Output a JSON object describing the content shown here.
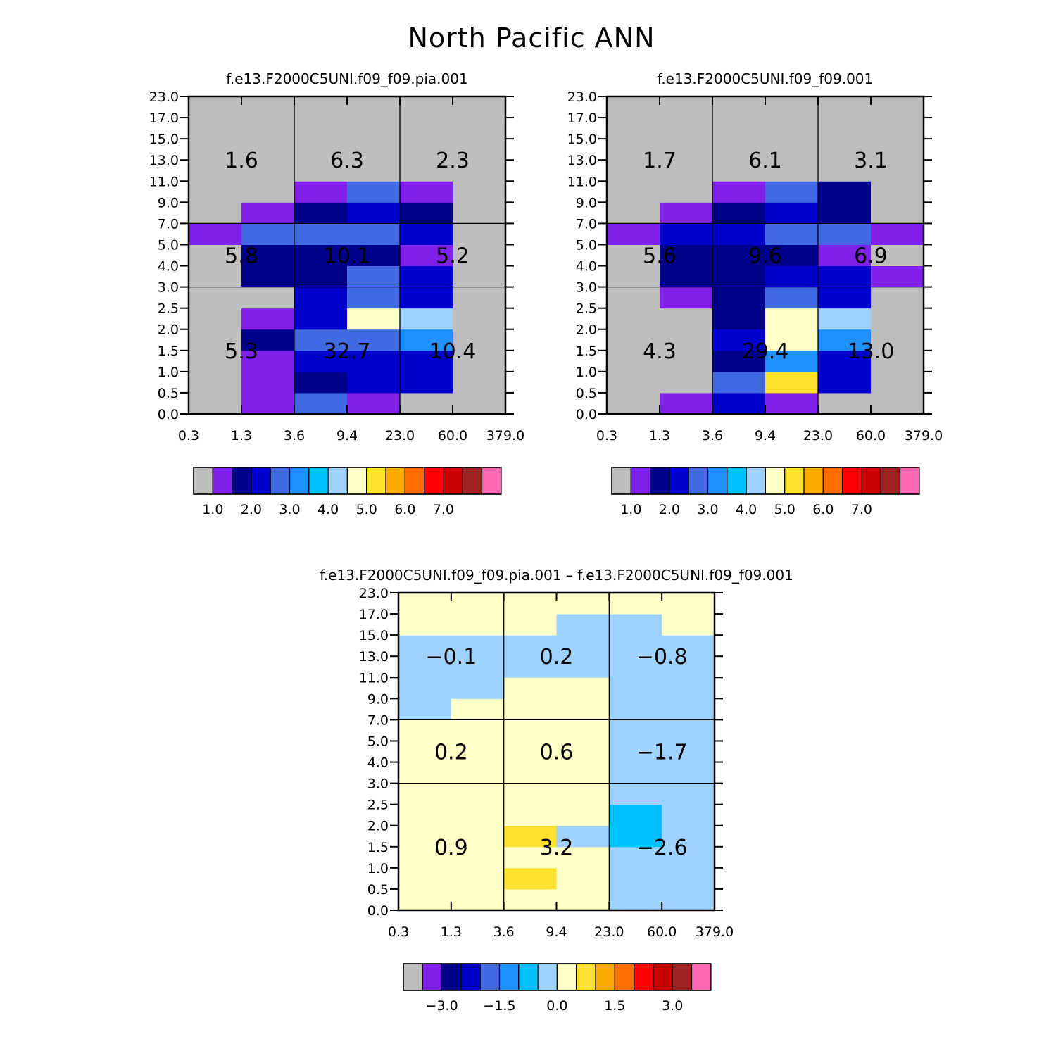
{
  "title": "North Pacific ANN",
  "colors": {
    "missing": "#bebebe",
    "palette": [
      "#bebebe",
      "#8020e8",
      "#00008b",
      "#0000cd",
      "#4169e1",
      "#1e90ff",
      "#00bfff",
      "#a0d2ff",
      "#ffffc8",
      "#ffe132",
      "#ffaa00",
      "#ff6e00",
      "#ff0000",
      "#c80000",
      "#a02323",
      "#ff69b4"
    ]
  },
  "chart_data": [
    {
      "id": "panel-pia",
      "type": "heatmap",
      "title": "f.e13.F2000C5UNI.f09_f09.pia.001",
      "x_ticks": [
        "0.3",
        "1.3",
        "3.6",
        "9.4",
        "23.0",
        "60.0",
        "379.0"
      ],
      "y_ticks": [
        "0.0",
        "0.5",
        "1.0",
        "1.5",
        "2.0",
        "2.5",
        "3.0",
        "4.0",
        "5.0",
        "7.0",
        "9.0",
        "11.0",
        "13.0",
        "15.0",
        "17.0",
        "23.0"
      ],
      "group_values": [
        [
          "1.6",
          "6.3",
          "2.3"
        ],
        [
          "5.8",
          "10.1",
          "5.2"
        ],
        [
          "5.3",
          "32.7",
          "10.4"
        ]
      ],
      "grid_color_index": [
        [
          0,
          1,
          4,
          1,
          0,
          0
        ],
        [
          0,
          1,
          2,
          3,
          3,
          0
        ],
        [
          0,
          1,
          3,
          3,
          3,
          0
        ],
        [
          0,
          2,
          4,
          4,
          5,
          0
        ],
        [
          0,
          1,
          3,
          8,
          7,
          0
        ],
        [
          0,
          0,
          3,
          4,
          3,
          0
        ],
        [
          0,
          2,
          2,
          4,
          3,
          0
        ],
        [
          0,
          2,
          2,
          2,
          1,
          0
        ],
        [
          1,
          4,
          4,
          4,
          3,
          0
        ],
        [
          0,
          1,
          2,
          3,
          2,
          0
        ],
        [
          0,
          0,
          1,
          4,
          1,
          0
        ],
        [
          0,
          0,
          0,
          0,
          0,
          0
        ],
        [
          0,
          0,
          0,
          0,
          0,
          0
        ],
        [
          0,
          0,
          0,
          0,
          0,
          0
        ],
        [
          0,
          0,
          0,
          0,
          0,
          0
        ]
      ],
      "colorbar": {
        "labels": [
          "1.0",
          "2.0",
          "3.0",
          "4.0",
          "5.0",
          "6.0",
          "7.0"
        ],
        "label_box_index": [
          1,
          3,
          5,
          7,
          9,
          11,
          13
        ]
      }
    },
    {
      "id": "panel-ctrl",
      "type": "heatmap",
      "title": "f.e13.F2000C5UNI.f09_f09.001",
      "x_ticks": [
        "0.3",
        "1.3",
        "3.6",
        "9.4",
        "23.0",
        "60.0",
        "379.0"
      ],
      "y_ticks": [
        "0.0",
        "0.5",
        "1.0",
        "1.5",
        "2.0",
        "2.5",
        "3.0",
        "4.0",
        "5.0",
        "7.0",
        "9.0",
        "11.0",
        "13.0",
        "15.0",
        "17.0",
        "23.0"
      ],
      "group_values": [
        [
          "1.7",
          "6.1",
          "3.1"
        ],
        [
          "5.6",
          "9.6",
          "6.9"
        ],
        [
          "4.3",
          "29.4",
          "13.0"
        ]
      ],
      "grid_color_index": [
        [
          0,
          1,
          3,
          1,
          0,
          0
        ],
        [
          0,
          0,
          4,
          9,
          3,
          0
        ],
        [
          0,
          0,
          2,
          5,
          3,
          0
        ],
        [
          0,
          0,
          3,
          8,
          5,
          0
        ],
        [
          0,
          0,
          2,
          8,
          7,
          0
        ],
        [
          0,
          1,
          2,
          4,
          3,
          0
        ],
        [
          0,
          2,
          2,
          3,
          3,
          1
        ],
        [
          0,
          2,
          2,
          2,
          1,
          0
        ],
        [
          1,
          3,
          3,
          4,
          4,
          1
        ],
        [
          0,
          1,
          2,
          3,
          2,
          0
        ],
        [
          0,
          0,
          1,
          4,
          2,
          0
        ],
        [
          0,
          0,
          0,
          0,
          0,
          0
        ],
        [
          0,
          0,
          0,
          0,
          0,
          0
        ],
        [
          0,
          0,
          0,
          0,
          0,
          0
        ],
        [
          0,
          0,
          0,
          0,
          0,
          0
        ]
      ],
      "colorbar": {
        "labels": [
          "1.0",
          "2.0",
          "3.0",
          "4.0",
          "5.0",
          "6.0",
          "7.0"
        ],
        "label_box_index": [
          1,
          3,
          5,
          7,
          9,
          11,
          13
        ]
      }
    },
    {
      "id": "panel-diff",
      "type": "heatmap",
      "title": "f.e13.F2000C5UNI.f09_f09.pia.001 – f.e13.F2000C5UNI.f09_f09.001",
      "x_ticks": [
        "0.3",
        "1.3",
        "3.6",
        "9.4",
        "23.0",
        "60.0",
        "379.0"
      ],
      "y_ticks": [
        "0.0",
        "0.5",
        "1.0",
        "1.5",
        "2.0",
        "2.5",
        "3.0",
        "4.0",
        "5.0",
        "7.0",
        "9.0",
        "11.0",
        "13.0",
        "15.0",
        "17.0",
        "23.0"
      ],
      "group_values": [
        [
          "-0.1",
          "0.2",
          "-0.8"
        ],
        [
          "0.2",
          "0.6",
          "-1.7"
        ],
        [
          "0.9",
          "3.2",
          "-2.6"
        ]
      ],
      "grid_color_index": [
        [
          8,
          8,
          8,
          8,
          7,
          7
        ],
        [
          8,
          8,
          9,
          8,
          7,
          7
        ],
        [
          8,
          8,
          8,
          8,
          7,
          7
        ],
        [
          8,
          8,
          9,
          7,
          6,
          7
        ],
        [
          8,
          8,
          8,
          8,
          6,
          7
        ],
        [
          8,
          8,
          8,
          8,
          7,
          7
        ],
        [
          8,
          8,
          8,
          8,
          7,
          7
        ],
        [
          8,
          8,
          8,
          8,
          7,
          7
        ],
        [
          8,
          8,
          8,
          8,
          7,
          7
        ],
        [
          7,
          8,
          8,
          8,
          7,
          7
        ],
        [
          7,
          7,
          8,
          8,
          7,
          7
        ],
        [
          7,
          7,
          7,
          7,
          7,
          7
        ],
        [
          7,
          7,
          7,
          7,
          7,
          7
        ],
        [
          8,
          8,
          8,
          7,
          7,
          8
        ],
        [
          8,
          8,
          8,
          8,
          8,
          8
        ]
      ],
      "colorbar": {
        "labels": [
          "−3.0",
          "−1.5",
          "0.0",
          "1.5",
          "3.0"
        ],
        "label_box_index": [
          2,
          5,
          8,
          11,
          14
        ]
      }
    }
  ]
}
